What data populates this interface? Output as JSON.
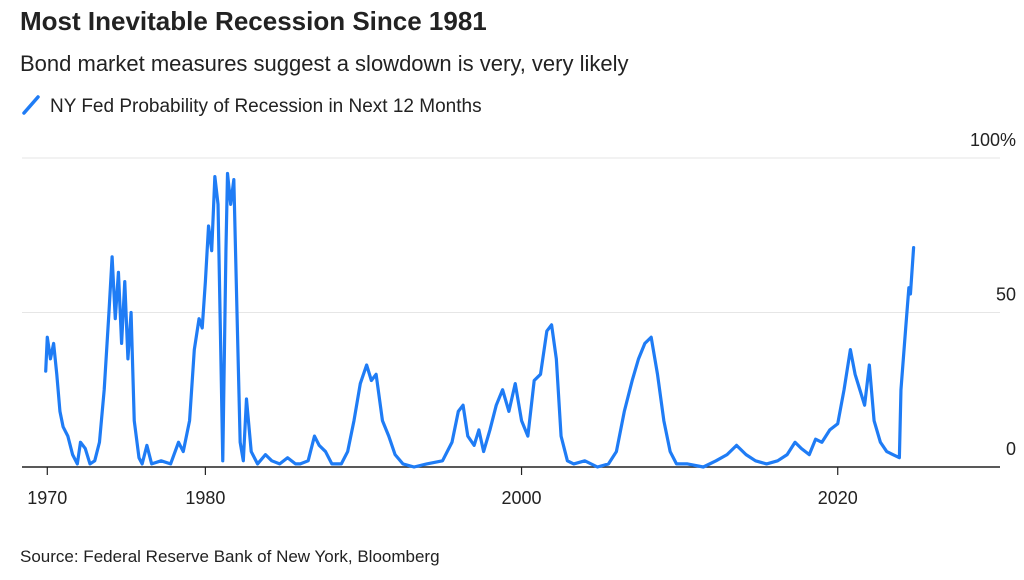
{
  "chart_data": {
    "type": "line",
    "title": "Most Inevitable Recession Since 1981",
    "subtitle": "Bond market measures suggest a slowdown is very, very likely",
    "source": "Source: Federal Reserve Bank of New York, Bloomberg",
    "x": [
      1969.9,
      1970.0,
      1970.2,
      1970.4,
      1970.6,
      1970.8,
      1971.0,
      1971.3,
      1971.6,
      1971.9,
      1972.1,
      1972.4,
      1972.7,
      1973.0,
      1973.3,
      1973.6,
      1973.9,
      1974.1,
      1974.3,
      1974.5,
      1974.7,
      1974.9,
      1975.1,
      1975.3,
      1975.5,
      1975.8,
      1976.0,
      1976.3,
      1976.6,
      1977.2,
      1977.8,
      1978.3,
      1978.6,
      1979.0,
      1979.3,
      1979.6,
      1979.8,
      1980.0,
      1980.2,
      1980.4,
      1980.6,
      1980.8,
      1981.0,
      1981.1,
      1981.3,
      1981.4,
      1981.6,
      1981.8,
      1982.0,
      1982.2,
      1982.4,
      1982.6,
      1982.9,
      1983.3,
      1983.8,
      1984.2,
      1984.7,
      1985.2,
      1985.7,
      1986.0,
      1986.5,
      1986.9,
      1987.2,
      1987.6,
      1988.0,
      1988.6,
      1989.0,
      1989.4,
      1989.8,
      1990.2,
      1990.5,
      1990.8,
      1991.2,
      1991.6,
      1992.0,
      1992.5,
      1993.2,
      1994.0,
      1995.0,
      1995.6,
      1996.0,
      1996.3,
      1996.6,
      1997.0,
      1997.3,
      1997.6,
      1998.0,
      1998.4,
      1998.8,
      1999.2,
      1999.6,
      2000.0,
      2000.4,
      2000.8,
      2001.2,
      2001.6,
      2001.9,
      2002.2,
      2002.5,
      2002.9,
      2003.3,
      2004.0,
      2004.8,
      2005.5,
      2006.0,
      2006.5,
      2007.0,
      2007.4,
      2007.8,
      2008.2,
      2008.6,
      2009.0,
      2009.4,
      2009.8,
      2010.5,
      2011.5,
      2012.3,
      2013.0,
      2013.6,
      2014.2,
      2014.8,
      2015.5,
      2016.2,
      2016.8,
      2017.3,
      2017.7,
      2018.2,
      2018.6,
      2019.0,
      2019.5,
      2020.0,
      2020.4,
      2020.8,
      2021.1,
      2021.4,
      2021.7,
      2022.0,
      2022.3,
      2022.7,
      2023.1,
      2023.5,
      2023.9,
      2024.0,
      2024.3,
      2024.5,
      2024.6,
      2024.8
    ],
    "series": [
      {
        "name": "NY Fed Probability of Recession in Next 12 Months",
        "color": "#1f7cf5",
        "values": [
          31,
          42,
          35,
          40,
          30,
          18,
          13,
          10,
          4,
          1,
          8,
          6,
          1,
          2,
          8,
          25,
          50,
          68,
          48,
          63,
          40,
          60,
          35,
          50,
          15,
          3,
          1,
          7,
          1,
          2,
          1,
          8,
          5,
          15,
          38,
          48,
          45,
          60,
          78,
          70,
          94,
          85,
          30,
          2,
          70,
          95,
          85,
          93,
          50,
          8,
          2,
          22,
          5,
          1,
          4,
          2,
          1,
          3,
          1,
          1,
          2,
          10,
          7,
          5,
          1,
          1,
          5,
          15,
          27,
          33,
          28,
          30,
          15,
          10,
          4,
          1,
          0,
          1,
          2,
          8,
          18,
          20,
          10,
          7,
          12,
          5,
          12,
          20,
          25,
          18,
          27,
          15,
          10,
          28,
          30,
          44,
          46,
          35,
          10,
          2,
          1,
          2,
          0,
          1,
          5,
          18,
          28,
          35,
          40,
          42,
          30,
          15,
          5,
          1,
          1,
          0,
          2,
          4,
          7,
          4,
          2,
          1,
          2,
          4,
          8,
          6,
          4,
          9,
          8,
          12,
          14,
          25,
          38,
          30,
          25,
          20,
          33,
          15,
          8,
          5,
          4,
          3,
          25,
          45,
          58,
          56,
          71
        ]
      }
    ],
    "xlim": [
      1968.4,
      2029
    ],
    "xticks": [
      1970,
      1980,
      2000,
      2020
    ],
    "ylim": [
      0,
      100
    ],
    "yticks": [
      0,
      50,
      {
        "value": 100,
        "label": "100%"
      }
    ],
    "grid": true
  }
}
